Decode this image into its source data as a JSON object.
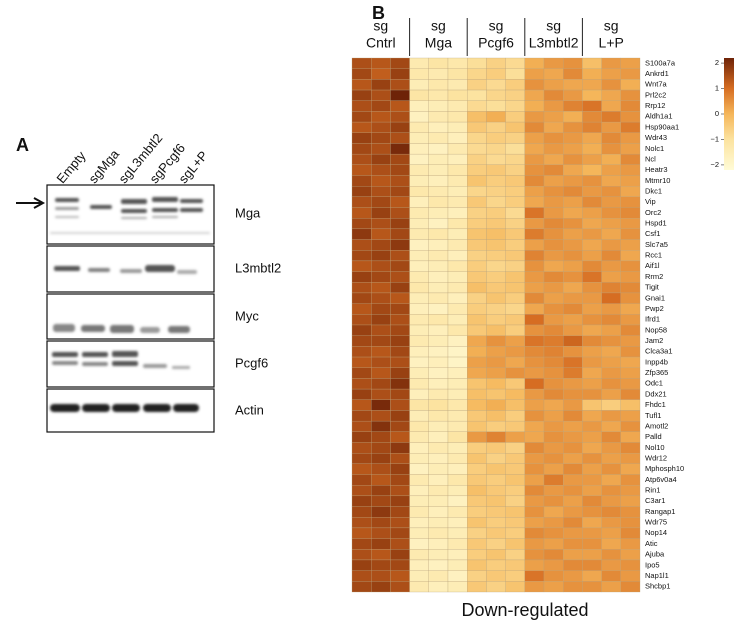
{
  "panel_a": {
    "label": "A",
    "lanes": [
      "Empty",
      "sgMga",
      "sgL3mbtl2",
      "sgPcgf6",
      "sgL+P"
    ],
    "blots": [
      "Mga",
      "L3mbtl2",
      "Myc",
      "Pcgf6",
      "Actin"
    ]
  },
  "panel_b": {
    "label": "B",
    "groups": [
      [
        "sg",
        "Cntrl"
      ],
      [
        "sg",
        "Mga"
      ],
      [
        "sg",
        "Pcgf6"
      ],
      [
        "sg",
        "L3mbtl2"
      ],
      [
        "sg",
        "L+P"
      ]
    ],
    "genes": [
      "S100a7a",
      "Ankrd1",
      "Wnt7a",
      "Prl2c2",
      "Rrp12",
      "Aldh1a1",
      "Hsp90aa1",
      "Wdr43",
      "Nolc1",
      "Ncl",
      "Heatr3",
      "Mtmr10",
      "Dkc1",
      "Vip",
      "Orc2",
      "Hspd1",
      "Csf1",
      "Slc7a5",
      "Rcc1",
      "Aif1l",
      "Rrm2",
      "Tigit",
      "Gnai1",
      "Pwp2",
      "Ifrd1",
      "Nop58",
      "Jam2",
      "Clca3a1",
      "Inpp4b",
      "Zfp365",
      "Odc1",
      "Ddx21",
      "Fhdc1",
      "Tufl1",
      "Amotl2",
      "Palld",
      "Nol10",
      "Wdr12",
      "Mphosph10",
      "Atp6v0a4",
      "Rin1",
      "C3ar1",
      "Rangap1",
      "Wdr75",
      "Nop14",
      "Atic",
      "Ajuba",
      "Ipo5",
      "Nap1l1",
      "Shcbp1"
    ],
    "values": [
      [
        1.4,
        1.3,
        1.5,
        -1.3,
        -1.1,
        -1.2,
        -0.9,
        -0.6,
        -0.8,
        0.1,
        0.4,
        0.5,
        -0.2,
        0.4,
        0.3
      ],
      [
        1.5,
        1.2,
        1.6,
        -1.2,
        -1.3,
        -1.1,
        -0.7,
        -0.5,
        -0.9,
        0.3,
        0.2,
        0.6,
        0.1,
        0.3,
        0.4
      ],
      [
        1.3,
        1.6,
        1.4,
        -1.4,
        -1.2,
        -1.3,
        -0.6,
        -0.8,
        -0.5,
        0.5,
        0.3,
        0.2,
        0.2,
        0.5,
        0.1
      ],
      [
        1.6,
        1.4,
        2.1,
        -1.1,
        -1.2,
        -1.0,
        -1.0,
        -0.7,
        -0.6,
        0.2,
        0.6,
        0.4,
        0.0,
        0.2,
        0.5
      ],
      [
        1.4,
        1.5,
        1.3,
        -1.5,
        -1.4,
        -1.3,
        -0.8,
        -0.9,
        -0.7,
        0.1,
        0.4,
        0.7,
        0.9,
        0.2,
        0.6
      ],
      [
        1.5,
        1.3,
        1.4,
        -1.6,
        -1.3,
        -1.2,
        -0.2,
        0.1,
        -0.5,
        0.4,
        0.3,
        0.1,
        0.6,
        0.8,
        0.5
      ],
      [
        1.3,
        1.4,
        1.6,
        -1.3,
        -1.5,
        -1.4,
        -0.4,
        -0.6,
        -0.3,
        0.6,
        0.2,
        0.5,
        0.7,
        0.4,
        0.8
      ],
      [
        1.6,
        1.5,
        1.4,
        -1.4,
        -1.3,
        -1.5,
        -0.7,
        -0.5,
        -0.6,
        0.3,
        0.5,
        0.4,
        0.2,
        0.6,
        0.4
      ],
      [
        1.5,
        1.4,
        1.9,
        -1.5,
        -1.6,
        -1.3,
        -0.8,
        -0.7,
        -0.9,
        0.2,
        0.4,
        0.3,
        0.1,
        0.5,
        0.3
      ],
      [
        1.4,
        1.6,
        1.5,
        -1.6,
        -1.4,
        -1.5,
        -0.6,
        -0.8,
        -0.7,
        0.4,
        0.2,
        0.5,
        0.3,
        0.1,
        0.6
      ],
      [
        1.3,
        1.4,
        1.5,
        -1.3,
        -1.4,
        -1.2,
        -0.5,
        -0.4,
        -0.6,
        0.5,
        0.6,
        0.2,
        0.0,
        0.3,
        0.4
      ],
      [
        1.5,
        1.3,
        1.4,
        -1.4,
        -1.5,
        -1.3,
        -0.3,
        -0.5,
        -0.4,
        0.6,
        0.3,
        0.4,
        0.5,
        0.2,
        0.3
      ],
      [
        1.6,
        1.4,
        1.5,
        -1.2,
        -1.3,
        -1.4,
        -0.7,
        -0.6,
        -0.5,
        0.3,
        0.5,
        0.6,
        0.4,
        0.5,
        0.2
      ],
      [
        1.4,
        1.5,
        1.3,
        -1.5,
        -1.2,
        -1.3,
        -0.4,
        -0.7,
        -0.5,
        0.2,
        0.4,
        0.3,
        0.6,
        0.4,
        0.5
      ],
      [
        1.3,
        1.6,
        1.4,
        -1.3,
        -1.4,
        -1.5,
        -0.6,
        -0.5,
        -0.8,
        0.9,
        0.4,
        0.2,
        0.3,
        0.5,
        0.6
      ],
      [
        1.5,
        1.4,
        1.6,
        -1.4,
        -1.6,
        -1.2,
        -0.5,
        -0.4,
        -0.6,
        0.4,
        0.6,
        0.5,
        0.2,
        0.3,
        0.4
      ],
      [
        1.7,
        1.3,
        1.5,
        -1.3,
        -1.2,
        -1.4,
        -0.3,
        -0.2,
        -0.4,
        0.8,
        0.5,
        0.3,
        0.4,
        0.2,
        0.5
      ],
      [
        1.4,
        1.5,
        1.7,
        -1.6,
        -1.5,
        -1.3,
        -0.4,
        -0.3,
        -0.5,
        0.3,
        0.5,
        0.4,
        0.2,
        0.4,
        0.3
      ],
      [
        1.5,
        1.6,
        1.4,
        -1.4,
        -1.3,
        -1.5,
        -0.6,
        -0.5,
        -0.4,
        0.7,
        0.4,
        0.5,
        0.3,
        0.6,
        0.2
      ],
      [
        1.3,
        1.4,
        1.5,
        -1.5,
        -1.4,
        -1.2,
        -0.5,
        -0.7,
        -0.6,
        0.5,
        0.2,
        0.3,
        0.6,
        0.4,
        0.5
      ],
      [
        1.6,
        1.5,
        1.4,
        -1.3,
        -1.5,
        -1.4,
        -0.4,
        -0.5,
        -0.3,
        0.4,
        0.6,
        0.5,
        0.9,
        0.3,
        0.4
      ],
      [
        1.4,
        1.3,
        1.6,
        -1.2,
        -1.4,
        -1.3,
        -0.2,
        -0.4,
        -0.3,
        0.3,
        0.4,
        0.2,
        0.5,
        0.7,
        0.6
      ],
      [
        1.5,
        1.4,
        1.3,
        -1.4,
        -1.3,
        -1.5,
        -0.6,
        -0.3,
        -0.5,
        0.6,
        0.3,
        0.4,
        0.4,
        1.0,
        0.5
      ],
      [
        1.3,
        1.5,
        1.5,
        -1.5,
        -1.6,
        -1.3,
        -0.5,
        -0.6,
        -0.7,
        0.2,
        0.5,
        0.6,
        0.3,
        0.4,
        0.2
      ],
      [
        1.4,
        1.6,
        1.4,
        -1.3,
        -1.2,
        -1.4,
        -0.3,
        -0.5,
        -0.4,
        1.0,
        0.4,
        0.3,
        0.5,
        0.6,
        0.4
      ],
      [
        1.6,
        1.4,
        1.5,
        -1.4,
        -1.5,
        -1.2,
        -0.4,
        -0.2,
        -0.5,
        0.5,
        0.6,
        0.4,
        0.2,
        0.3,
        0.6
      ],
      [
        1.5,
        1.5,
        1.6,
        -1.3,
        -1.4,
        -1.6,
        0.2,
        0.5,
        0.3,
        0.9,
        0.8,
        1.1,
        0.6,
        0.5,
        0.4
      ],
      [
        1.4,
        1.3,
        1.5,
        -1.5,
        -1.6,
        -1.7,
        0.1,
        0.3,
        0.4,
        0.6,
        0.7,
        0.5,
        0.3,
        0.2,
        0.5
      ],
      [
        1.3,
        1.4,
        1.4,
        -1.6,
        -1.5,
        -1.7,
        0.3,
        0.4,
        0.2,
        0.5,
        0.6,
        0.9,
        0.4,
        0.3,
        0.2
      ],
      [
        1.5,
        1.3,
        1.6,
        -1.4,
        -1.6,
        -1.5,
        0.2,
        0.3,
        0.5,
        0.4,
        0.5,
        0.8,
        0.2,
        0.4,
        0.3
      ],
      [
        1.4,
        1.5,
        1.8,
        -1.3,
        -1.5,
        -1.4,
        -0.3,
        -0.1,
        -0.4,
        1.0,
        0.5,
        0.4,
        0.3,
        0.5,
        0.4
      ],
      [
        1.6,
        1.4,
        1.5,
        -1.5,
        -1.3,
        -1.4,
        -0.2,
        -0.3,
        -0.1,
        0.4,
        0.6,
        0.5,
        0.5,
        0.3,
        0.6
      ],
      [
        1.3,
        1.9,
        1.4,
        -1.1,
        -1.0,
        -1.2,
        -0.1,
        0.1,
        -0.2,
        0.3,
        0.2,
        0.4,
        -0.3,
        -0.5,
        -0.2
      ],
      [
        1.5,
        1.4,
        1.6,
        -1.4,
        -1.2,
        -1.3,
        -0.4,
        -0.2,
        -0.5,
        0.5,
        0.3,
        0.6,
        0.2,
        0.4,
        0.3
      ],
      [
        1.4,
        1.8,
        1.5,
        -1.2,
        -1.4,
        -1.3,
        -0.3,
        -0.5,
        -0.4,
        0.2,
        0.4,
        0.3,
        0.4,
        0.2,
        0.5
      ],
      [
        1.6,
        1.5,
        1.3,
        -1.3,
        -1.5,
        -1.1,
        0.4,
        0.7,
        0.3,
        0.2,
        0.5,
        0.4,
        0.3,
        0.6,
        0.2
      ],
      [
        1.4,
        1.5,
        1.7,
        -1.5,
        -1.3,
        -1.4,
        -0.5,
        -0.4,
        -0.6,
        0.6,
        0.4,
        0.5,
        0.2,
        0.4,
        0.6
      ],
      [
        1.5,
        1.6,
        1.4,
        -1.4,
        -1.5,
        -1.3,
        -0.3,
        -0.6,
        -0.4,
        0.4,
        0.5,
        0.3,
        0.5,
        0.3,
        0.4
      ],
      [
        1.3,
        1.4,
        1.6,
        -1.6,
        -1.4,
        -1.5,
        -0.5,
        -0.3,
        -0.4,
        0.5,
        0.3,
        0.6,
        0.3,
        0.5,
        0.2
      ],
      [
        1.5,
        1.3,
        1.5,
        -1.3,
        -1.5,
        -1.2,
        -0.4,
        -0.5,
        -0.3,
        0.3,
        0.8,
        0.4,
        0.4,
        0.2,
        0.5
      ],
      [
        1.4,
        1.6,
        1.4,
        -1.5,
        -1.3,
        -1.4,
        -0.2,
        -0.4,
        -0.5,
        0.6,
        0.4,
        0.5,
        0.3,
        0.5,
        0.4
      ],
      [
        1.6,
        1.5,
        1.6,
        -1.4,
        -1.4,
        -1.6,
        -0.4,
        -0.3,
        -0.6,
        0.4,
        0.5,
        0.3,
        0.6,
        0.4,
        0.3
      ],
      [
        1.5,
        1.7,
        1.5,
        -1.3,
        -1.5,
        -1.3,
        -0.5,
        -0.4,
        -0.3,
        0.5,
        0.2,
        0.4,
        0.5,
        0.6,
        0.5
      ],
      [
        1.4,
        1.5,
        1.4,
        -1.5,
        -1.4,
        -1.5,
        -0.3,
        -0.5,
        -0.4,
        0.3,
        0.4,
        0.6,
        0.2,
        0.4,
        0.5
      ],
      [
        1.3,
        1.4,
        1.5,
        -1.4,
        -1.3,
        -1.4,
        -0.6,
        -0.4,
        -0.5,
        0.6,
        0.5,
        0.4,
        0.4,
        0.3,
        0.6
      ],
      [
        1.5,
        1.6,
        1.4,
        -1.6,
        -1.5,
        -1.3,
        -0.4,
        -0.6,
        -0.3,
        0.4,
        0.3,
        0.5,
        0.5,
        0.2,
        0.4
      ],
      [
        1.4,
        1.3,
        1.6,
        -1.3,
        -1.4,
        -1.5,
        -0.5,
        -0.3,
        -0.6,
        0.5,
        0.6,
        0.3,
        0.3,
        0.5,
        0.3
      ],
      [
        1.6,
        1.5,
        1.5,
        -1.5,
        -1.6,
        -1.4,
        -0.3,
        -0.5,
        -0.4,
        0.3,
        0.4,
        0.6,
        0.6,
        0.4,
        0.5
      ],
      [
        1.4,
        1.4,
        1.3,
        -1.4,
        -1.3,
        -1.6,
        -0.6,
        -0.4,
        -0.5,
        0.9,
        0.5,
        0.4,
        0.2,
        0.6,
        0.4
      ],
      [
        1.5,
        1.6,
        1.4,
        -1.3,
        -1.5,
        -1.4,
        -0.4,
        -0.6,
        -0.3,
        0.4,
        0.3,
        0.5,
        0.5,
        0.3,
        0.6
      ]
    ],
    "colorbar": {
      "lim": [
        -2.2,
        2.2
      ],
      "ticks": [
        2,
        1,
        0,
        {
          "value": -1,
          "label": "−1"
        },
        {
          "value": -2,
          "label": "−2"
        }
      ]
    },
    "caption": "Down-regulated"
  }
}
